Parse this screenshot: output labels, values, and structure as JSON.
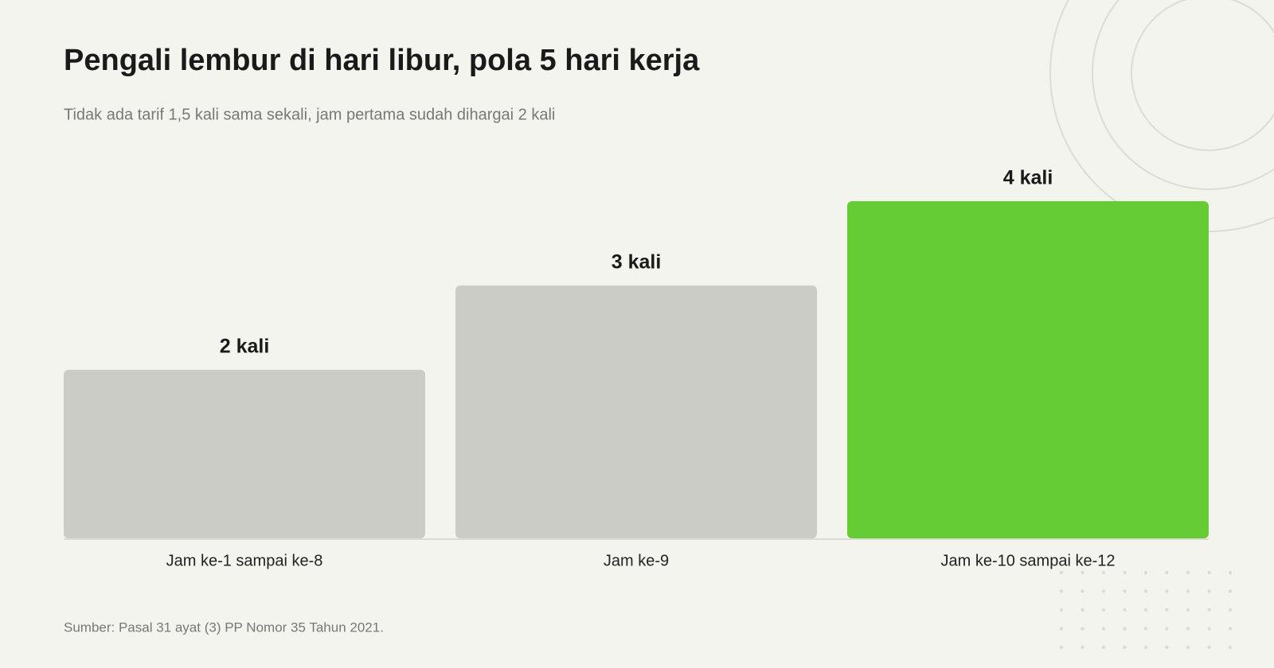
{
  "chart_data": {
    "type": "bar",
    "title": "Pengali lembur di hari libur, pola 5 hari kerja",
    "subtitle": "Tidak ada tarif 1,5 kali sama sekali, jam pertama sudah dihargai 2 kali",
    "categories": [
      "Jam ke-1 sampai ke-8",
      "Jam ke-9",
      "Jam ke-10 sampai ke-12"
    ],
    "values": [
      2,
      3,
      4
    ],
    "value_labels": [
      "2 kali",
      "3 kali",
      "4 kali"
    ],
    "colors": [
      "#cbccc6",
      "#cbccc6",
      "#66cc33"
    ],
    "ylim": [
      0,
      4
    ],
    "source": "Sumber: Pasal 31 ayat (3) PP Nomor 35 Tahun 2021."
  }
}
